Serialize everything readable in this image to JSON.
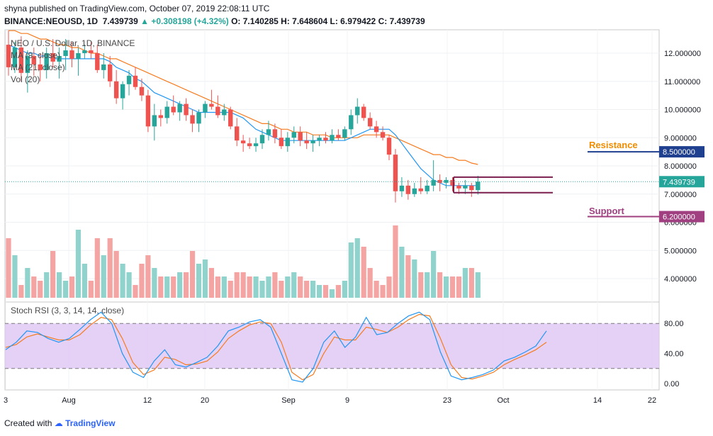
{
  "header": {
    "published_line": "shyna published on TradingView.com, October 07, 2019 22:08:11 UTC",
    "symbol": "BINANCE:NEOUSD, 1D",
    "price": "7.439739",
    "change": "+0.308198 (+4.32%)",
    "ohlc": "O: 7.140285 H: 7.648604 L: 6.979422 C: 7.439739"
  },
  "legend": {
    "title": "NEO / U.S. Dollar, 1D, BINANCE",
    "ma9": "MA (9, close)",
    "ma21": "MA (21, close)",
    "vol": "Vol (20)",
    "stoch": "Stoch RSI (3, 3, 14, 14, close)"
  },
  "annotations": {
    "resistance_label": "Resistance",
    "resistance_value": "8.500000",
    "support_label": "Support",
    "support_value": "6.200000",
    "current_price": "7.439739"
  },
  "footer": {
    "prefix": "Created with",
    "brand": "TradingView"
  },
  "colors": {
    "up": "#26a69a",
    "down": "#ef5350",
    "ma9": "#2196f3",
    "ma21": "#f57c20",
    "resistance": "#1f3f8f",
    "support": "#a04080",
    "range_box": "#7b1f4f",
    "stoch_band": "#e1c8f5"
  },
  "chart_data": {
    "type": "candlestick",
    "title": "NEO / U.S. Dollar, 1D, BINANCE",
    "price_axis_ticks": [
      "12.000000",
      "11.000000",
      "10.000000",
      "9.000000",
      "8.000000",
      "7.000000",
      "6.000000",
      "5.000000",
      "4.000000"
    ],
    "stoch_axis_ticks": [
      "80.00",
      "40.00",
      "0.00"
    ],
    "x_tick_labels": [
      "3",
      "Aug",
      "12",
      "20",
      "Sep",
      "9",
      "23",
      "Oct",
      "14",
      "22"
    ],
    "ylim": [
      3.0,
      13.0
    ],
    "candles": [
      {
        "o": 12.3,
        "h": 12.8,
        "l": 11.2,
        "c": 11.5
      },
      {
        "o": 11.5,
        "h": 12.4,
        "l": 11.3,
        "c": 12.2
      },
      {
        "o": 12.2,
        "h": 12.6,
        "l": 11.0,
        "c": 11.3
      },
      {
        "o": 11.3,
        "h": 12.1,
        "l": 10.6,
        "c": 11.9
      },
      {
        "o": 11.9,
        "h": 12.2,
        "l": 11.2,
        "c": 11.6
      },
      {
        "o": 11.6,
        "h": 12.0,
        "l": 11.0,
        "c": 11.4
      },
      {
        "o": 11.4,
        "h": 12.2,
        "l": 11.1,
        "c": 12.0
      },
      {
        "o": 12.0,
        "h": 12.5,
        "l": 11.5,
        "c": 11.7
      },
      {
        "o": 11.7,
        "h": 12.2,
        "l": 11.1,
        "c": 11.9
      },
      {
        "o": 11.9,
        "h": 12.5,
        "l": 11.4,
        "c": 12.1
      },
      {
        "o": 12.1,
        "h": 12.4,
        "l": 11.5,
        "c": 11.8
      },
      {
        "o": 11.8,
        "h": 12.2,
        "l": 11.2,
        "c": 12.0
      },
      {
        "o": 12.0,
        "h": 12.3,
        "l": 11.8,
        "c": 12.1
      },
      {
        "o": 12.1,
        "h": 12.4,
        "l": 11.8,
        "c": 12.0
      },
      {
        "o": 12.0,
        "h": 12.3,
        "l": 11.3,
        "c": 11.4
      },
      {
        "o": 11.4,
        "h": 12.0,
        "l": 11.1,
        "c": 11.6
      },
      {
        "o": 11.6,
        "h": 11.9,
        "l": 10.8,
        "c": 11.0
      },
      {
        "o": 11.0,
        "h": 11.4,
        "l": 10.2,
        "c": 10.4
      },
      {
        "o": 10.4,
        "h": 11.0,
        "l": 10.0,
        "c": 10.9
      },
      {
        "o": 10.9,
        "h": 11.4,
        "l": 10.5,
        "c": 11.2
      },
      {
        "o": 11.2,
        "h": 11.5,
        "l": 10.7,
        "c": 10.8
      },
      {
        "o": 10.8,
        "h": 11.1,
        "l": 10.3,
        "c": 10.5
      },
      {
        "o": 10.5,
        "h": 10.7,
        "l": 9.2,
        "c": 9.4
      },
      {
        "o": 9.4,
        "h": 10.2,
        "l": 8.9,
        "c": 9.8
      },
      {
        "o": 9.8,
        "h": 10.0,
        "l": 9.4,
        "c": 9.7
      },
      {
        "o": 9.7,
        "h": 10.3,
        "l": 9.5,
        "c": 10.1
      },
      {
        "o": 10.1,
        "h": 10.5,
        "l": 9.8,
        "c": 9.9
      },
      {
        "o": 9.9,
        "h": 10.3,
        "l": 9.6,
        "c": 10.2
      },
      {
        "o": 10.2,
        "h": 10.4,
        "l": 9.6,
        "c": 9.8
      },
      {
        "o": 9.8,
        "h": 10.0,
        "l": 9.2,
        "c": 9.5
      },
      {
        "o": 9.5,
        "h": 10.0,
        "l": 9.2,
        "c": 9.9
      },
      {
        "o": 9.9,
        "h": 10.3,
        "l": 9.7,
        "c": 10.2
      },
      {
        "o": 10.2,
        "h": 10.7,
        "l": 10.0,
        "c": 10.1
      },
      {
        "o": 10.1,
        "h": 10.5,
        "l": 9.7,
        "c": 9.8
      },
      {
        "o": 9.8,
        "h": 10.2,
        "l": 9.6,
        "c": 10.0
      },
      {
        "o": 10.0,
        "h": 10.1,
        "l": 9.3,
        "c": 9.4
      },
      {
        "o": 9.4,
        "h": 9.7,
        "l": 8.7,
        "c": 8.9
      },
      {
        "o": 8.9,
        "h": 9.1,
        "l": 8.5,
        "c": 8.8
      },
      {
        "o": 8.8,
        "h": 9.0,
        "l": 8.6,
        "c": 8.7
      },
      {
        "o": 8.7,
        "h": 9.0,
        "l": 8.5,
        "c": 8.8
      },
      {
        "o": 8.8,
        "h": 9.3,
        "l": 8.6,
        "c": 9.1
      },
      {
        "o": 9.1,
        "h": 9.6,
        "l": 8.9,
        "c": 9.3
      },
      {
        "o": 9.3,
        "h": 9.5,
        "l": 8.8,
        "c": 9.0
      },
      {
        "o": 9.0,
        "h": 9.3,
        "l": 8.6,
        "c": 8.7
      },
      {
        "o": 8.7,
        "h": 9.2,
        "l": 8.5,
        "c": 9.0
      },
      {
        "o": 9.0,
        "h": 9.4,
        "l": 8.8,
        "c": 9.2
      },
      {
        "o": 9.2,
        "h": 9.4,
        "l": 8.7,
        "c": 8.9
      },
      {
        "o": 8.9,
        "h": 9.2,
        "l": 8.6,
        "c": 8.8
      },
      {
        "o": 8.8,
        "h": 9.1,
        "l": 8.5,
        "c": 8.9
      },
      {
        "o": 8.9,
        "h": 9.1,
        "l": 8.7,
        "c": 9.0
      },
      {
        "o": 9.0,
        "h": 9.2,
        "l": 8.8,
        "c": 8.9
      },
      {
        "o": 8.9,
        "h": 9.3,
        "l": 8.8,
        "c": 9.1
      },
      {
        "o": 9.1,
        "h": 9.3,
        "l": 8.9,
        "c": 9.0
      },
      {
        "o": 9.0,
        "h": 9.4,
        "l": 8.9,
        "c": 9.3
      },
      {
        "o": 9.3,
        "h": 10.0,
        "l": 9.1,
        "c": 9.8
      },
      {
        "o": 9.8,
        "h": 10.4,
        "l": 9.5,
        "c": 10.1
      },
      {
        "o": 10.1,
        "h": 10.2,
        "l": 9.6,
        "c": 9.7
      },
      {
        "o": 9.7,
        "h": 9.9,
        "l": 9.3,
        "c": 9.4
      },
      {
        "o": 9.4,
        "h": 9.6,
        "l": 9.0,
        "c": 9.2
      },
      {
        "o": 9.2,
        "h": 9.4,
        "l": 8.9,
        "c": 9.0
      },
      {
        "o": 9.0,
        "h": 9.1,
        "l": 8.2,
        "c": 8.4
      },
      {
        "o": 8.4,
        "h": 8.6,
        "l": 6.7,
        "c": 7.1
      },
      {
        "o": 7.1,
        "h": 7.6,
        "l": 6.9,
        "c": 7.3
      },
      {
        "o": 7.3,
        "h": 7.5,
        "l": 6.8,
        "c": 7.0
      },
      {
        "o": 7.0,
        "h": 7.4,
        "l": 6.9,
        "c": 7.2
      },
      {
        "o": 7.2,
        "h": 7.6,
        "l": 7.0,
        "c": 7.1
      },
      {
        "o": 7.1,
        "h": 7.5,
        "l": 7.0,
        "c": 7.3
      },
      {
        "o": 7.3,
        "h": 8.2,
        "l": 7.1,
        "c": 7.5
      },
      {
        "o": 7.5,
        "h": 7.7,
        "l": 7.1,
        "c": 7.4
      },
      {
        "o": 7.4,
        "h": 7.6,
        "l": 7.2,
        "c": 7.5
      },
      {
        "o": 7.5,
        "h": 7.6,
        "l": 7.1,
        "c": 7.3
      },
      {
        "o": 7.3,
        "h": 7.4,
        "l": 7.0,
        "c": 7.2
      },
      {
        "o": 7.2,
        "h": 7.5,
        "l": 7.0,
        "c": 7.3
      },
      {
        "o": 7.3,
        "h": 7.4,
        "l": 6.9,
        "c": 7.14
      },
      {
        "o": 7.14,
        "h": 7.65,
        "l": 6.98,
        "c": 7.44
      }
    ],
    "volume": [
      4.9,
      4.5,
      3.8,
      4.2,
      4.0,
      3.9,
      4.1,
      4.6,
      4.1,
      3.9,
      4.0,
      5.1,
      4.3,
      3.9,
      4.9,
      4.5,
      4.9,
      4.6,
      4.3,
      4.1,
      3.8,
      4.3,
      4.5,
      4.2,
      4.0,
      4.0,
      4.0,
      4.1,
      4.1,
      4.6,
      4.3,
      4.4,
      4.2,
      4.0,
      4.0,
      3.9,
      4.1,
      4.1,
      4.0,
      4.0,
      3.9,
      4.0,
      4.1,
      3.9,
      4.0,
      4.1,
      4.0,
      3.9,
      3.9,
      3.8,
      3.8,
      3.7,
      3.8,
      3.9,
      4.8,
      4.9,
      4.7,
      4.2,
      3.9,
      3.8,
      4.0,
      5.2,
      4.7,
      4.5,
      4.4,
      4.1,
      4.1,
      4.6,
      4.1,
      4.0,
      4.0,
      4.0,
      4.2,
      4.2,
      4.1
    ],
    "ma9": [
      12.3,
      12.2,
      12.1,
      12.0,
      12.0,
      11.9,
      11.9,
      11.8,
      11.8,
      11.8,
      11.8,
      11.8,
      11.8,
      11.8,
      11.8,
      11.8,
      11.7,
      11.5,
      11.4,
      11.3,
      11.1,
      11.0,
      10.8,
      10.6,
      10.5,
      10.4,
      10.3,
      10.2,
      10.1,
      10.0,
      9.9,
      9.9,
      9.9,
      9.9,
      9.9,
      9.9,
      9.8,
      9.7,
      9.5,
      9.3,
      9.2,
      9.1,
      9.0,
      8.9,
      8.9,
      8.9,
      8.9,
      8.9,
      8.9,
      8.9,
      8.9,
      8.9,
      8.9,
      8.9,
      9.0,
      9.1,
      9.2,
      9.3,
      9.3,
      9.3,
      9.3,
      9.1,
      8.8,
      8.5,
      8.2,
      7.9,
      7.7,
      7.5,
      7.4,
      7.3,
      7.3,
      7.3,
      7.3,
      7.3,
      7.3
    ],
    "ma21": [
      12.8,
      12.8,
      12.7,
      12.7,
      12.6,
      12.5,
      12.5,
      12.4,
      12.3,
      12.3,
      12.2,
      12.2,
      12.1,
      12.0,
      12.0,
      11.9,
      11.8,
      11.8,
      11.7,
      11.6,
      11.5,
      11.4,
      11.3,
      11.2,
      11.1,
      11.0,
      10.9,
      10.8,
      10.7,
      10.6,
      10.5,
      10.4,
      10.3,
      10.2,
      10.1,
      10.0,
      9.9,
      9.8,
      9.7,
      9.6,
      9.5,
      9.5,
      9.4,
      9.3,
      9.3,
      9.2,
      9.2,
      9.2,
      9.1,
      9.1,
      9.1,
      9.0,
      9.0,
      9.0,
      9.0,
      9.0,
      9.1,
      9.1,
      9.1,
      9.1,
      9.1,
      9.0,
      8.9,
      8.8,
      8.7,
      8.6,
      8.5,
      8.4,
      8.4,
      8.3,
      8.3,
      8.2,
      8.2,
      8.1,
      8.05
    ],
    "stoch_k": [
      45,
      55,
      70,
      68,
      60,
      55,
      60,
      72,
      85,
      95,
      80,
      40,
      15,
      8,
      30,
      45,
      25,
      22,
      28,
      35,
      50,
      70,
      75,
      82,
      85,
      75,
      40,
      5,
      2,
      20,
      55,
      70,
      48,
      62,
      88,
      65,
      68,
      80,
      90,
      95,
      85,
      42,
      10,
      5,
      8,
      12,
      18,
      30,
      35,
      42,
      50,
      70
    ],
    "stoch_d": [
      48,
      52,
      62,
      66,
      62,
      58,
      58,
      65,
      78,
      88,
      85,
      60,
      28,
      12,
      18,
      35,
      32,
      25,
      26,
      30,
      42,
      60,
      70,
      78,
      82,
      80,
      55,
      15,
      5,
      12,
      40,
      62,
      58,
      58,
      75,
      72,
      68,
      75,
      85,
      92,
      90,
      60,
      25,
      8,
      6,
      10,
      15,
      25,
      32,
      38,
      45,
      55
    ]
  }
}
